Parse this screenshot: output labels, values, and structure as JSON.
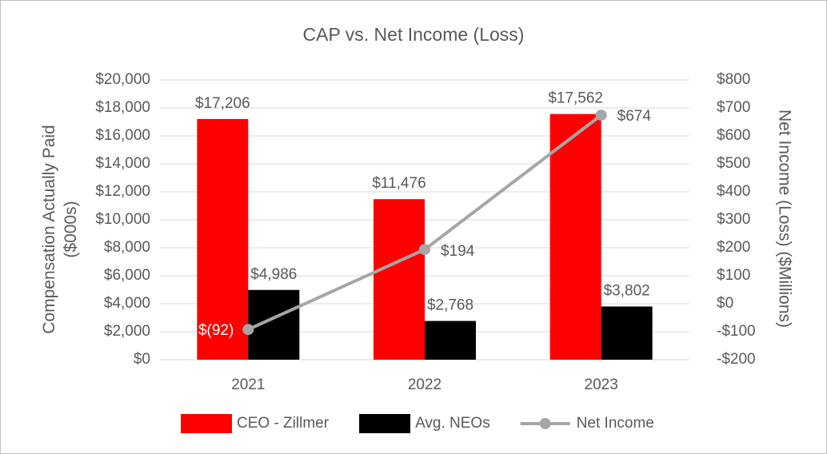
{
  "chart_data": {
    "type": "bar",
    "title": "CAP vs. Net Income (Loss)",
    "y_label": "Compensation Actually Paid ($000s)",
    "y2_label": "Net Income (Loss) ($Millions)",
    "categories": [
      "2021",
      "2022",
      "2023"
    ],
    "series": [
      {
        "name": "CEO - Zillmer",
        "color": "#ff0000",
        "values": [
          17206,
          11476,
          17562
        ],
        "value_labels": [
          "$17,206",
          "$11,476",
          "$17,562"
        ]
      },
      {
        "name": "Avg. NEOs",
        "color": "#000000",
        "values": [
          4986,
          2768,
          3802
        ],
        "value_labels": [
          "$4,986",
          "$2,768",
          "$3,802"
        ]
      },
      {
        "name": "Net Income",
        "color": "#a6a6a6",
        "type": "line",
        "axis": "y2",
        "values": [
          -92,
          194,
          674
        ],
        "value_labels": [
          "$(92)",
          "$194",
          "$674"
        ]
      }
    ],
    "ylim": [
      0,
      20000
    ],
    "yticks": [
      {
        "value": 0,
        "label": "$0"
      },
      {
        "value": 2000,
        "label": "$2,000"
      },
      {
        "value": 4000,
        "label": "$4,000"
      },
      {
        "value": 6000,
        "label": "$6,000"
      },
      {
        "value": 8000,
        "label": "$8,000"
      },
      {
        "value": 10000,
        "label": "$10,000"
      },
      {
        "value": 12000,
        "label": "$12,000"
      },
      {
        "value": 14000,
        "label": "$14,000"
      },
      {
        "value": 16000,
        "label": "$16,000"
      },
      {
        "value": 18000,
        "label": "$18,000"
      },
      {
        "value": 20000,
        "label": "$20,000"
      }
    ],
    "y2lim": [
      -200,
      800
    ],
    "y2ticks": [
      {
        "value": -200,
        "label": "-$200"
      },
      {
        "value": -100,
        "label": "-$100"
      },
      {
        "value": 0,
        "label": "$0"
      },
      {
        "value": 100,
        "label": "$100"
      },
      {
        "value": 200,
        "label": "$200"
      },
      {
        "value": 300,
        "label": "$300"
      },
      {
        "value": 400,
        "label": "$400"
      },
      {
        "value": 500,
        "label": "$500"
      },
      {
        "value": 600,
        "label": "$600"
      },
      {
        "value": 700,
        "label": "$700"
      },
      {
        "value": 800,
        "label": "$800"
      }
    ],
    "grid": true,
    "legend": "bottom"
  }
}
